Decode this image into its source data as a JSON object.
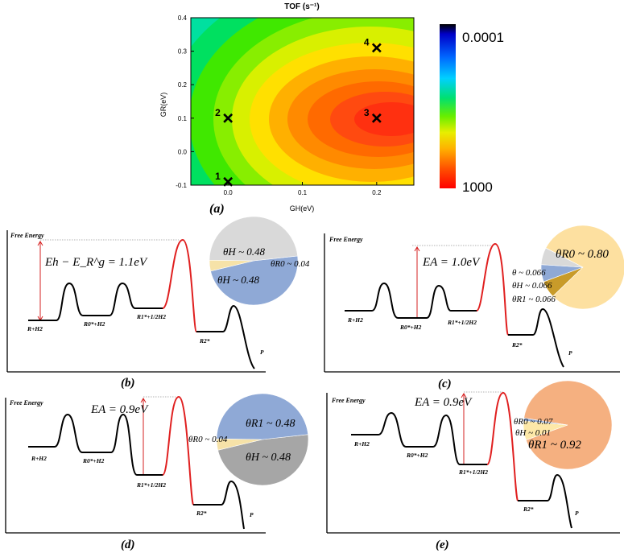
{
  "chart_data": [
    {
      "type": "heatmap",
      "panel": "(a)",
      "title": "TOF (s⁻¹)",
      "xlabel": "GH(eV)",
      "ylabel": "GR(eV)",
      "xlim": [
        -0.05,
        0.25
      ],
      "ylim": [
        -0.1,
        0.4
      ],
      "x_ticks": [
        "0.0",
        "0.1",
        "0.2"
      ],
      "y_ticks": [
        "-0.1",
        "0.0",
        "0.1",
        "0.2",
        "0.3",
        "0.4"
      ],
      "colorbar": {
        "max_label": "0.0001",
        "min_label": "1000",
        "scale": "log"
      },
      "maximum": {
        "x": 0.15,
        "y": 0.1
      },
      "points": [
        {
          "label": "1",
          "x": 0.0,
          "y": -0.09
        },
        {
          "label": "2",
          "x": 0.0,
          "y": 0.1
        },
        {
          "label": "3",
          "x": 0.2,
          "y": 0.1
        },
        {
          "label": "4",
          "x": 0.2,
          "y": 0.31
        }
      ]
    },
    {
      "type": "energy-diagram",
      "panel": "(b)",
      "y_axis_label": "Free Energy",
      "states": [
        "R+H2",
        "R0*+H2",
        "R1*+1/2H2",
        "R2*",
        "P"
      ],
      "equation": "Eh − E_R^g = 1.1eV",
      "pie": [
        {
          "label": "θH ~ 0.48",
          "value": 0.48,
          "color": "#8fa9d6"
        },
        {
          "label": "θR0 ~ 0.04",
          "value": 0.04,
          "color": "#f6e2a8"
        },
        {
          "label": "θH ~ 0.48",
          "value": 0.48,
          "color": "#d9d9d9"
        }
      ]
    },
    {
      "type": "energy-diagram",
      "panel": "(c)",
      "y_axis_label": "Free Energy",
      "states": [
        "R+H2",
        "R0*+H2",
        "R1*+1/2H2",
        "R2*",
        "P"
      ],
      "equation": "EA = 1.0eV",
      "pie": [
        {
          "label": "θR0 ~ 0.80",
          "value": 0.8,
          "color": "#fde0a0"
        },
        {
          "label": "θR1 ~ 0.066",
          "value": 0.066,
          "color": "#c89b2a"
        },
        {
          "label": "θH ~ 0.066",
          "value": 0.066,
          "color": "#8fa9d6"
        },
        {
          "label": "θ ~ 0.066",
          "value": 0.066,
          "color": "#d9d9d9"
        }
      ]
    },
    {
      "type": "energy-diagram",
      "panel": "(d)",
      "y_axis_label": "Free Energy",
      "states": [
        "R+H2",
        "R0*+H2",
        "R1*+1/2H2",
        "R2*",
        "P"
      ],
      "equation": "EA = 0.9eV",
      "pie": [
        {
          "label": "θR1 ~ 0.48",
          "value": 0.48,
          "color": "#a6a6a6"
        },
        {
          "label": "θR0 ~ 0.04",
          "value": 0.04,
          "color": "#f6e2a8"
        },
        {
          "label": "θH ~ 0.48",
          "value": 0.48,
          "color": "#8fa9d6"
        }
      ]
    },
    {
      "type": "energy-diagram",
      "panel": "(e)",
      "y_axis_label": "Free Energy",
      "states": [
        "R+H2",
        "R0*+H2",
        "R1*+1/2H2",
        "R2*",
        "P"
      ],
      "equation": "EA = 0.9eV",
      "pie": [
        {
          "label": "θR1 ~ 0.92",
          "value": 0.92,
          "color": "#f5b080"
        },
        {
          "label": "θR0 ~ 0.07",
          "value": 0.07,
          "color": "#fde8a8"
        },
        {
          "label": "θH ~ 0.01",
          "value": 0.01,
          "color": "#8fa9d6"
        }
      ]
    }
  ]
}
